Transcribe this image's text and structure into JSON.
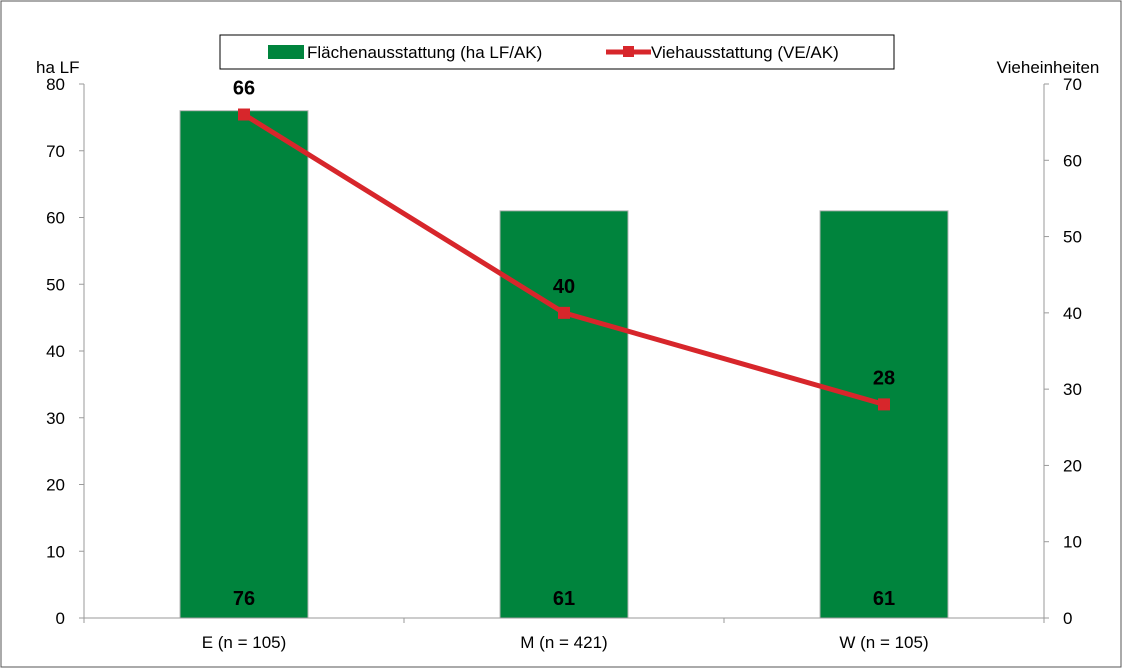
{
  "chart_data": {
    "type": "bar",
    "categories": [
      "E (n = 105)",
      "M (n = 421)",
      "W (n = 105)"
    ],
    "series": [
      {
        "name": "Flächenausstattung (ha LF/AK)",
        "type": "bar",
        "axis": "left",
        "color": "#00843d",
        "values": [
          76,
          61,
          61
        ],
        "labels": [
          "76",
          "61",
          "61"
        ]
      },
      {
        "name": "Viehausstattung (VE/AK)",
        "type": "line",
        "axis": "right",
        "color": "#d7262b",
        "values": [
          66,
          40,
          28
        ],
        "labels": [
          "66",
          "40",
          "28"
        ]
      }
    ],
    "ylabel_left": "ha LF",
    "ylabel_right": "Vieheinheiten",
    "ylim_left": [
      0,
      80
    ],
    "ylim_right": [
      0,
      70
    ],
    "yticks_left": [
      "0",
      "10",
      "20",
      "30",
      "40",
      "50",
      "60",
      "70",
      "80"
    ],
    "yticks_right": [
      "0",
      "10",
      "20",
      "30",
      "40",
      "50",
      "60",
      "70"
    ],
    "legend_position": "top-center",
    "grid": false
  }
}
